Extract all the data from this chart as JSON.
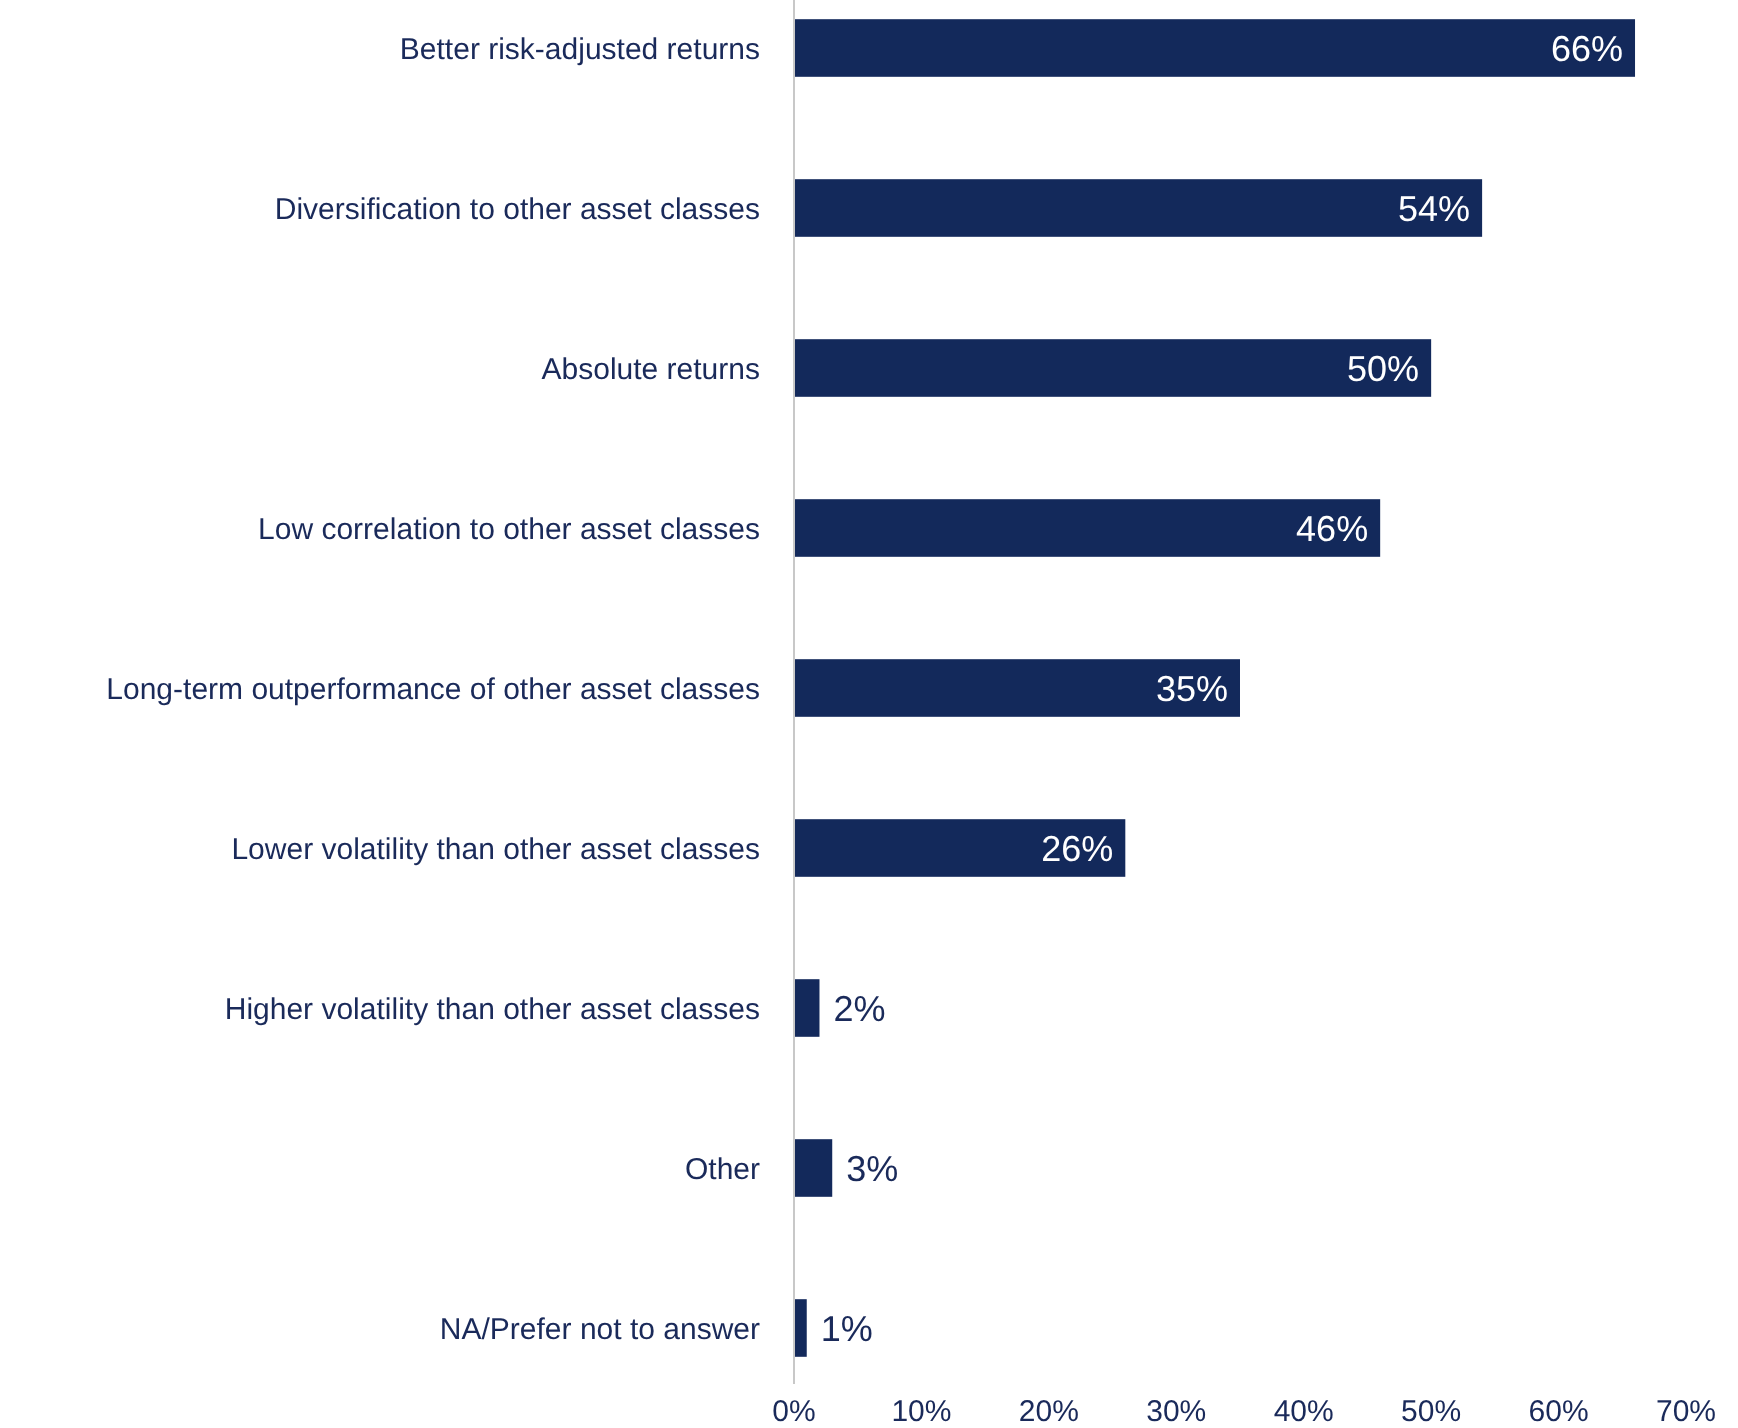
{
  "chart_data": {
    "type": "bar",
    "orientation": "horizontal",
    "categories": [
      "Better risk-adjusted returns",
      "Diversification to other asset classes",
      "Absolute returns",
      "Low correlation to other asset classes",
      "Long-term outperformance of other asset classes",
      "Lower volatility than other asset classes",
      "Higher volatility than other asset classes",
      "Other",
      "NA/Prefer not to answer"
    ],
    "values": [
      66,
      54,
      50,
      46,
      35,
      26,
      2,
      3,
      1
    ],
    "value_labels": [
      "66%",
      "54%",
      "50%",
      "46%",
      "35%",
      "26%",
      "2%",
      "3%",
      "1%"
    ],
    "color": "#13295b",
    "xlim": [
      0,
      70
    ],
    "xticks": [
      {
        "value": 0,
        "label": "0%"
      },
      {
        "value": 10,
        "label": "10%"
      },
      {
        "value": 20,
        "label": "20%"
      },
      {
        "value": 30,
        "label": "30%"
      },
      {
        "value": 40,
        "label": "40%"
      },
      {
        "value": 50,
        "label": "50%"
      },
      {
        "value": 60,
        "label": "60%"
      },
      {
        "value": 70,
        "label": "70%"
      }
    ]
  }
}
